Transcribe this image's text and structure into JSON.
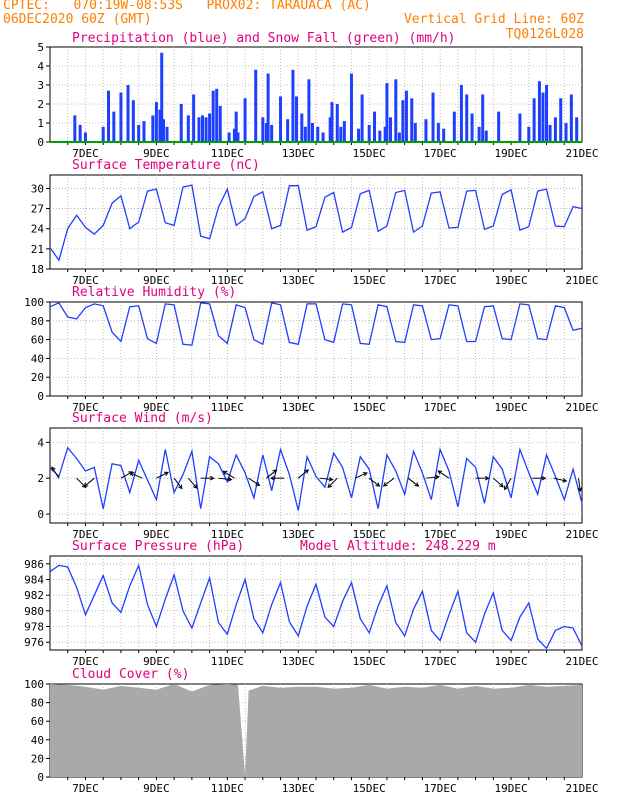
{
  "header": {
    "line1_left": "CPTEC:   070:19W-08:53S   PROX02: TARAUACA (AC)",
    "line2_left": "06DEC2020 60Z (GMT)",
    "line2_right": "Vertical Grid Line: 60Z",
    "line3_right": "TQ0126L028"
  },
  "colors": {
    "header": "#ff7f00",
    "title": "#e0007f",
    "precip": "#1f3fff",
    "snow": "#00a000",
    "series": "#1f3fff",
    "cloud": "#a9a9a9",
    "grid": "#b0b0b0",
    "arrow": "#000000"
  },
  "x_axis_ticks": [
    "7DEC",
    "9DEC",
    "11DEC",
    "13DEC",
    "15DEC",
    "17DEC",
    "19DEC",
    "21DEC"
  ],
  "chart_data": [
    {
      "id": "precip",
      "type": "bar",
      "title": "Precipitation (blue) and Snow Fall (green) (mm/h)",
      "ylim": [
        0,
        5
      ],
      "yticks": [
        0,
        1,
        2,
        3,
        4,
        5
      ],
      "x_unit": "days since 06DEC2020 00Z",
      "series": [
        {
          "name": "Precipitation (blue)",
          "color": "#1f3fff",
          "x": [
            0.7,
            0.85,
            1.0,
            1.5,
            1.65,
            1.8,
            2.0,
            2.2,
            2.35,
            2.5,
            2.65,
            2.9,
            3.0,
            3.1,
            3.15,
            3.2,
            3.3,
            3.7,
            3.9,
            4.05,
            4.2,
            4.3,
            4.4,
            4.5,
            4.6,
            4.7,
            4.8,
            5.05,
            5.2,
            5.25,
            5.3,
            5.5,
            5.8,
            6.0,
            6.1,
            6.15,
            6.25,
            6.5,
            6.7,
            6.85,
            6.95,
            7.1,
            7.2,
            7.3,
            7.4,
            7.55,
            7.7,
            7.9,
            7.95,
            8.1,
            8.2,
            8.3,
            8.5,
            8.7,
            8.8,
            9.0,
            9.15,
            9.3,
            9.45,
            9.5,
            9.6,
            9.75,
            9.85,
            9.95,
            10.05,
            10.2,
            10.3,
            10.6,
            10.8,
            10.95,
            11.1,
            11.4,
            11.6,
            11.75,
            11.9,
            12.1,
            12.2,
            12.3,
            12.65,
            13.25,
            13.5,
            13.65,
            13.8,
            13.9,
            14.0,
            14.1,
            14.25,
            14.4,
            14.55,
            14.7,
            14.85
          ],
          "values": [
            1.4,
            0.9,
            0.5,
            0.8,
            2.7,
            1.6,
            2.6,
            3.0,
            2.2,
            0.9,
            1.1,
            1.4,
            2.1,
            1.7,
            4.7,
            1.2,
            0.8,
            2.0,
            1.4,
            2.5,
            1.3,
            1.4,
            1.3,
            1.5,
            2.7,
            2.8,
            1.9,
            0.5,
            0.7,
            1.6,
            0.5,
            2.3,
            3.8,
            1.3,
            1.0,
            3.6,
            0.9,
            2.4,
            1.2,
            3.8,
            2.4,
            1.5,
            0.8,
            3.3,
            1.0,
            0.8,
            0.5,
            1.3,
            2.1,
            2.0,
            0.8,
            1.1,
            3.6,
            0.7,
            2.5,
            0.9,
            1.6,
            0.6,
            0.8,
            3.1,
            1.3,
            3.3,
            0.5,
            2.2,
            2.7,
            2.3,
            1.0,
            1.2,
            2.6,
            1.0,
            0.7,
            1.6,
            3.0,
            2.5,
            1.5,
            0.8,
            2.5,
            0.6,
            1.6,
            1.5,
            0.8,
            2.3,
            3.2,
            2.6,
            3.0,
            0.9,
            1.3,
            2.3,
            1.0,
            2.5,
            1.3
          ]
        },
        {
          "name": "Snow Fall (green)",
          "color": "#00a000",
          "x": [
            0,
            15
          ],
          "values": [
            0,
            0
          ]
        }
      ]
    },
    {
      "id": "temp",
      "type": "line",
      "title": "Surface Temperature (nC)",
      "ylim": [
        18,
        32
      ],
      "yticks": [
        18,
        21,
        24,
        27,
        30
      ],
      "x_unit": "days since 06DEC2020 00Z",
      "series": [
        {
          "name": "",
          "color": "#1f3fff",
          "x": [
            0,
            0.25,
            0.5,
            0.75,
            1.0,
            1.25,
            1.5,
            1.75,
            2.0,
            2.25,
            2.5,
            2.75,
            3.0,
            3.25,
            3.5,
            3.75,
            4.0,
            4.25,
            4.5,
            4.75,
            5.0,
            5.25,
            5.5,
            5.75,
            6.0,
            6.25,
            6.5,
            6.75,
            7.0,
            7.25,
            7.5,
            7.75,
            8.0,
            8.25,
            8.5,
            8.75,
            9.0,
            9.25,
            9.5,
            9.75,
            10.0,
            10.25,
            10.5,
            10.75,
            11.0,
            11.25,
            11.5,
            11.75,
            12.0,
            12.25,
            12.5,
            12.75,
            13.0,
            13.25,
            13.5,
            13.75,
            14.0,
            14.25,
            14.5,
            14.75,
            15.0
          ],
          "values": [
            21.2,
            19.3,
            24.0,
            26.0,
            24.2,
            23.2,
            24.5,
            27.8,
            28.9,
            24.0,
            25.0,
            29.6,
            29.9,
            24.9,
            24.5,
            30.2,
            30.5,
            22.9,
            22.5,
            27.2,
            29.9,
            24.5,
            25.5,
            28.8,
            29.5,
            24.0,
            24.5,
            30.4,
            30.4,
            23.8,
            24.3,
            28.7,
            29.4,
            23.5,
            24.2,
            29.2,
            29.7,
            23.6,
            24.4,
            29.4,
            29.7,
            23.5,
            24.4,
            29.3,
            29.5,
            24.1,
            24.2,
            29.6,
            29.7,
            23.9,
            24.4,
            29.1,
            29.8,
            23.8,
            24.3,
            29.6,
            29.9,
            24.4,
            24.3,
            27.3,
            27.0
          ]
        }
      ]
    },
    {
      "id": "rh",
      "type": "line",
      "title": "Relative Humidity (%)",
      "ylim": [
        0,
        100
      ],
      "yticks": [
        0,
        20,
        40,
        60,
        80,
        100
      ],
      "x_unit": "days since 06DEC2020 00Z",
      "series": [
        {
          "name": "",
          "color": "#1f3fff",
          "x": [
            0,
            0.25,
            0.5,
            0.75,
            1.0,
            1.25,
            1.5,
            1.75,
            2.0,
            2.25,
            2.5,
            2.75,
            3.0,
            3.25,
            3.5,
            3.75,
            4.0,
            4.25,
            4.5,
            4.75,
            5.0,
            5.25,
            5.5,
            5.75,
            6.0,
            6.25,
            6.5,
            6.75,
            7.0,
            7.25,
            7.5,
            7.75,
            8.0,
            8.25,
            8.5,
            8.75,
            9.0,
            9.25,
            9.5,
            9.75,
            10.0,
            10.25,
            10.5,
            10.75,
            11.0,
            11.25,
            11.5,
            11.75,
            12.0,
            12.25,
            12.5,
            12.75,
            13.0,
            13.25,
            13.5,
            13.75,
            14.0,
            14.25,
            14.5,
            14.75,
            15.0
          ],
          "values": [
            95,
            99,
            84,
            82,
            94,
            98,
            96,
            68,
            58,
            95,
            96,
            61,
            56,
            98,
            97,
            55,
            54,
            99,
            98,
            64,
            56,
            97,
            94,
            60,
            55,
            99,
            97,
            57,
            55,
            98,
            98,
            60,
            57,
            98,
            97,
            56,
            55,
            97,
            95,
            58,
            57,
            97,
            96,
            60,
            61,
            97,
            96,
            58,
            58,
            95,
            96,
            61,
            60,
            98,
            97,
            61,
            60,
            96,
            94,
            70,
            72
          ]
        }
      ]
    },
    {
      "id": "wind",
      "type": "line",
      "title": "Surface Wind (m/s)",
      "ylim": [
        -0.5,
        4.8
      ],
      "yticks": [
        0,
        2,
        4
      ],
      "x_unit": "days since 06DEC2020 00Z",
      "series": [
        {
          "name": "",
          "color": "#1f3fff",
          "x": [
            0,
            0.25,
            0.5,
            0.75,
            1.0,
            1.25,
            1.5,
            1.75,
            2.0,
            2.25,
            2.5,
            2.75,
            3.0,
            3.25,
            3.5,
            3.75,
            4.0,
            4.25,
            4.5,
            4.75,
            5.0,
            5.25,
            5.5,
            5.75,
            6.0,
            6.25,
            6.5,
            6.75,
            7.0,
            7.25,
            7.5,
            7.75,
            8.0,
            8.25,
            8.5,
            8.75,
            9.0,
            9.25,
            9.5,
            9.75,
            10.0,
            10.25,
            10.5,
            10.75,
            11.0,
            11.25,
            11.5,
            11.75,
            12.0,
            12.25,
            12.5,
            12.75,
            13.0,
            13.25,
            13.5,
            13.75,
            14.0,
            14.25,
            14.5,
            14.75,
            15.0
          ],
          "values": [
            2.6,
            2.1,
            3.7,
            3.1,
            2.4,
            2.6,
            0.3,
            2.8,
            2.7,
            1.2,
            3.0,
            1.9,
            0.8,
            3.6,
            1.2,
            2.2,
            3.5,
            0.3,
            3.2,
            2.8,
            1.8,
            3.3,
            2.3,
            0.9,
            3.3,
            1.3,
            3.6,
            2.2,
            0.2,
            3.2,
            2.1,
            1.5,
            3.4,
            2.6,
            0.9,
            3.2,
            2.5,
            0.3,
            3.3,
            2.4,
            1.1,
            3.5,
            2.3,
            0.8,
            3.6,
            2.4,
            0.4,
            3.1,
            2.6,
            0.6,
            3.2,
            2.5,
            0.9,
            3.6,
            2.3,
            1.1,
            3.3,
            2.1,
            0.8,
            2.5,
            0.6
          ]
        },
        {
          "name": "wind-vectors",
          "color": "#000000",
          "x": [
            0.25,
            0.75,
            1.25,
            2.0,
            2.6,
            3.0,
            3.5,
            3.9,
            4.25,
            4.75,
            5.2,
            5.6,
            6.1,
            6.6,
            7.0,
            7.6,
            8.1,
            8.6,
            9.0,
            9.7,
            10.1,
            10.6,
            11.25,
            12.0,
            12.5,
            13.0,
            13.6,
            14.2,
            14.9
          ],
          "u": [
            -0.5,
            0.6,
            -0.6,
            0.9,
            -0.9,
            1.2,
            0.6,
            0.6,
            0.8,
            0.9,
            -0.8,
            0.9,
            0.5,
            -0.6,
            0.6,
            0.9,
            -0.6,
            0.9,
            0.9,
            -0.8,
            0.9,
            0.9,
            -0.6,
            0.8,
            0.9,
            -0.4,
            0.6,
            0.9,
            0.1
          ],
          "v": [
            0.8,
            -0.6,
            -0.5,
            0.5,
            0.4,
            0.6,
            -0.8,
            -0.7,
            0.0,
            -0.1,
            0.5,
            -0.6,
            0.4,
            0.0,
            0.5,
            -0.1,
            -0.6,
            0.4,
            -0.7,
            -0.6,
            -0.7,
            0.1,
            0.4,
            0.0,
            -0.8,
            -0.7,
            0.0,
            -0.2,
            -0.7
          ]
        }
      ]
    },
    {
      "id": "pres",
      "type": "line",
      "title": "Surface Pressure (hPa)",
      "subtitle": "Model Altitude: 248.229  m",
      "ylim": [
        975,
        987
      ],
      "yticks": [
        976,
        978,
        980,
        982,
        984,
        986
      ],
      "x_unit": "days since 06DEC2020 00Z",
      "series": [
        {
          "name": "",
          "color": "#1f3fff",
          "x": [
            0,
            0.25,
            0.5,
            0.75,
            1.0,
            1.25,
            1.5,
            1.75,
            2.0,
            2.25,
            2.5,
            2.75,
            3.0,
            3.25,
            3.5,
            3.75,
            4.0,
            4.25,
            4.5,
            4.75,
            5.0,
            5.25,
            5.5,
            5.75,
            6.0,
            6.25,
            6.5,
            6.75,
            7.0,
            7.25,
            7.5,
            7.75,
            8.0,
            8.25,
            8.5,
            8.75,
            9.0,
            9.25,
            9.5,
            9.75,
            10.0,
            10.25,
            10.5,
            10.75,
            11.0,
            11.25,
            11.5,
            11.75,
            12.0,
            12.25,
            12.5,
            12.75,
            13.0,
            13.25,
            13.5,
            13.75,
            14.0,
            14.25,
            14.5,
            14.75,
            15.0
          ],
          "values": [
            985.0,
            985.8,
            985.6,
            983.0,
            979.5,
            982.0,
            984.5,
            981.0,
            979.8,
            983.2,
            985.8,
            980.8,
            978.0,
            981.5,
            984.6,
            980.0,
            977.8,
            981.0,
            984.2,
            978.5,
            977.0,
            980.8,
            984.0,
            979.0,
            977.2,
            980.8,
            983.6,
            978.6,
            976.8,
            980.6,
            983.4,
            979.2,
            978.0,
            981.2,
            983.6,
            979.0,
            977.2,
            980.6,
            983.2,
            978.5,
            976.8,
            980.2,
            982.5,
            977.5,
            976.2,
            979.5,
            982.5,
            977.2,
            976.0,
            979.6,
            982.3,
            977.5,
            976.2,
            979.2,
            981.0,
            976.4,
            975.2,
            977.5,
            978.0,
            977.8,
            975.5
          ]
        }
      ]
    },
    {
      "id": "cloud",
      "type": "area",
      "title": "Cloud Cover (%)",
      "ylim": [
        0,
        100
      ],
      "yticks": [
        0,
        20,
        40,
        60,
        80,
        100
      ],
      "x_unit": "days since 06DEC2020 00Z",
      "series": [
        {
          "name": "",
          "color": "#a9a9a9",
          "x": [
            0,
            0.5,
            1.0,
            1.5,
            2.0,
            2.5,
            3.0,
            3.5,
            4.0,
            4.5,
            5.0,
            5.3,
            5.5,
            5.6,
            6.0,
            6.5,
            7.0,
            7.5,
            8.0,
            8.5,
            9.0,
            9.5,
            10.0,
            10.5,
            11.0,
            11.5,
            12.0,
            12.5,
            13.0,
            13.5,
            14.0,
            14.5,
            15.0
          ],
          "values": [
            100,
            99,
            97,
            94,
            98,
            96,
            94,
            100,
            92,
            99,
            100,
            99,
            2,
            93,
            98,
            96,
            97,
            97,
            95,
            96,
            99,
            95,
            97,
            96,
            99,
            95,
            98,
            95,
            96,
            99,
            97,
            98,
            99
          ]
        }
      ]
    }
  ]
}
